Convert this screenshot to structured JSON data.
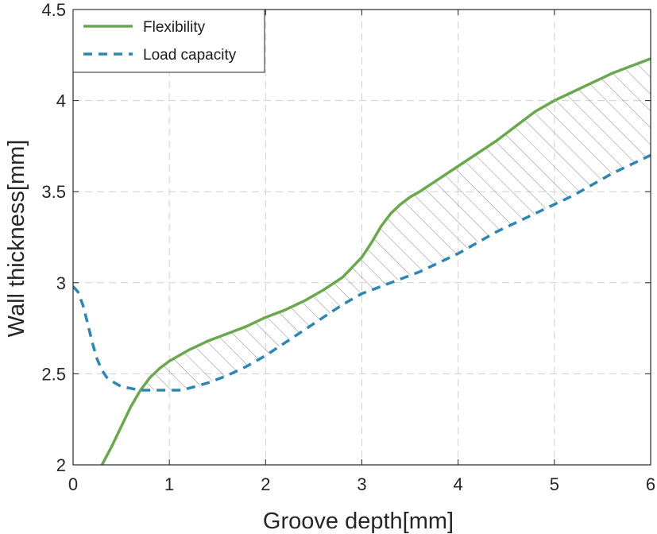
{
  "chart_data": {
    "type": "line",
    "xlabel": "Groove depth[mm]",
    "ylabel": "Wall thickness[mm]",
    "xlim": [
      0,
      6
    ],
    "ylim": [
      2,
      4.5
    ],
    "xticks": [
      0,
      1,
      2,
      3,
      4,
      5,
      6
    ],
    "xtick_labels": [
      "0",
      "1",
      "2",
      "3",
      "4",
      "5",
      "6"
    ],
    "yticks": [
      2,
      2.5,
      3,
      3.5,
      4,
      4.5
    ],
    "ytick_labels": [
      "2",
      "2.5",
      "3",
      "3.5",
      "4",
      "4.5"
    ],
    "grid": true,
    "legend_position": "top-left",
    "series": [
      {
        "name": "Flexibility",
        "color": "#6aa84f",
        "style": "solid",
        "x": [
          0.3,
          0.4,
          0.5,
          0.6,
          0.7,
          0.8,
          0.9,
          1.0,
          1.1,
          1.2,
          1.4,
          1.6,
          1.8,
          2.0,
          2.2,
          2.4,
          2.6,
          2.8,
          3.0,
          3.1,
          3.2,
          3.3,
          3.4,
          3.5,
          3.6,
          3.8,
          4.0,
          4.2,
          4.4,
          4.6,
          4.8,
          5.0,
          5.2,
          5.4,
          5.6,
          5.8,
          6.0
        ],
        "values": [
          2.0,
          2.1,
          2.21,
          2.32,
          2.41,
          2.48,
          2.53,
          2.57,
          2.6,
          2.63,
          2.68,
          2.72,
          2.76,
          2.81,
          2.85,
          2.9,
          2.96,
          3.03,
          3.14,
          3.22,
          3.31,
          3.38,
          3.43,
          3.47,
          3.5,
          3.57,
          3.64,
          3.71,
          3.78,
          3.86,
          3.94,
          4.0,
          4.05,
          4.1,
          4.15,
          4.19,
          4.23
        ]
      },
      {
        "name": "Load capacity",
        "color": "#2e86b3",
        "style": "dashed",
        "x": [
          0.0,
          0.05,
          0.1,
          0.15,
          0.2,
          0.25,
          0.3,
          0.35,
          0.4,
          0.5,
          0.6,
          0.7,
          0.8,
          0.9,
          1.0,
          1.1,
          1.2,
          1.4,
          1.6,
          1.8,
          2.0,
          2.2,
          2.4,
          2.6,
          2.8,
          3.0,
          3.2,
          3.4,
          3.6,
          3.8,
          4.0,
          4.2,
          4.4,
          4.6,
          4.8,
          5.0,
          5.2,
          5.4,
          5.6,
          5.8,
          6.0
        ],
        "values": [
          2.98,
          2.95,
          2.88,
          2.78,
          2.67,
          2.58,
          2.52,
          2.48,
          2.46,
          2.43,
          2.42,
          2.41,
          2.41,
          2.41,
          2.41,
          2.41,
          2.42,
          2.45,
          2.49,
          2.54,
          2.6,
          2.67,
          2.74,
          2.81,
          2.88,
          2.94,
          2.98,
          3.02,
          3.06,
          3.11,
          3.16,
          3.22,
          3.28,
          3.33,
          3.38,
          3.43,
          3.48,
          3.54,
          3.6,
          3.65,
          3.7
        ]
      }
    ],
    "shaded_region": {
      "between": [
        "Flexibility",
        "Load capacity"
      ],
      "x_range": [
        0.7,
        6.0
      ],
      "pattern": "diagonal hatch"
    }
  }
}
